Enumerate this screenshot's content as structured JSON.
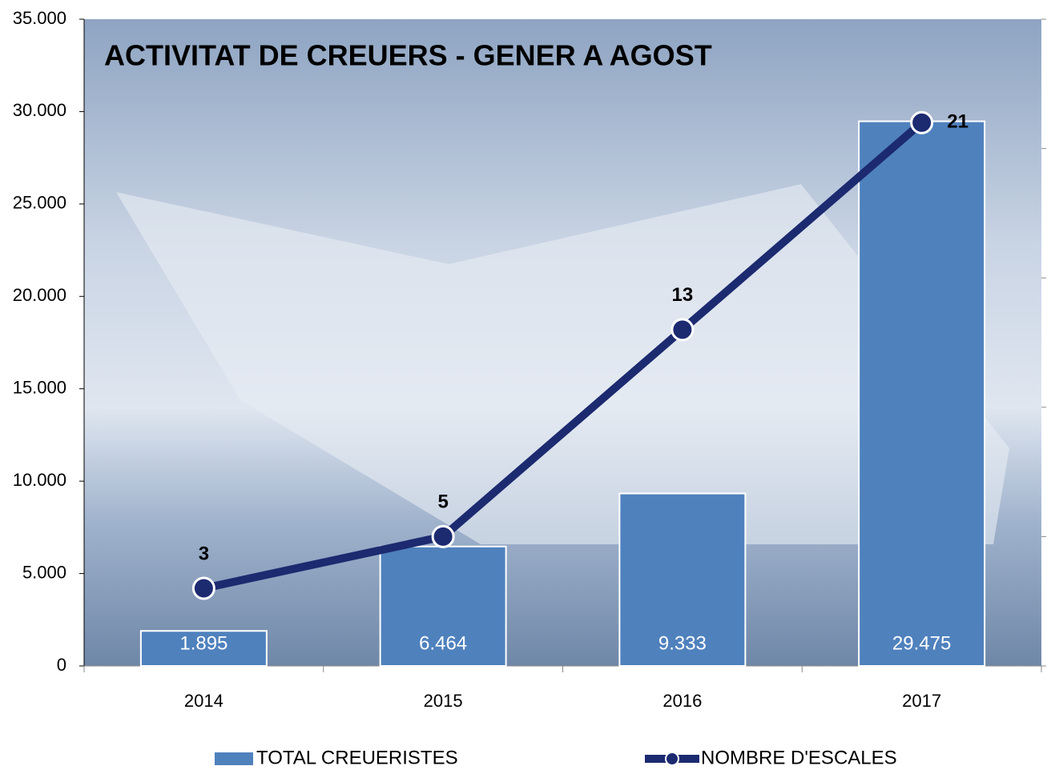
{
  "chart_data": {
    "type": "bar",
    "title": "ACTIVITAT DE CREUERS - GENER A AGOST",
    "categories": [
      "2014",
      "2015",
      "2016",
      "2017"
    ],
    "series": [
      {
        "name": "TOTAL CREUERISTES",
        "type": "bar",
        "color": "#4f81bd",
        "values": [
          1895,
          6464,
          9333,
          29475
        ],
        "value_labels": [
          "1.895",
          "6.464",
          "9.333",
          "29.475"
        ]
      },
      {
        "name": "NOMBRE D'ESCALES",
        "type": "line",
        "axis": "y2",
        "color": "#1c2a70",
        "values": [
          3,
          5,
          13,
          21
        ]
      }
    ],
    "ylim": [
      0,
      35000
    ],
    "yticks": [
      0,
      {
        "value": 5000,
        "label": "5.000"
      },
      {
        "value": 10000,
        "label": "10.000"
      },
      {
        "value": 15000,
        "label": "15.000"
      },
      {
        "value": 20000,
        "label": "20.000"
      },
      {
        "value": 25000,
        "label": "25.000"
      },
      {
        "value": 30000,
        "label": "30.000"
      },
      {
        "value": 35000,
        "label": "35.000"
      }
    ],
    "y2lim": [
      0,
      25
    ],
    "y2ticks": [
      0,
      5,
      10,
      15,
      20,
      25
    ],
    "legend": "bottom"
  }
}
